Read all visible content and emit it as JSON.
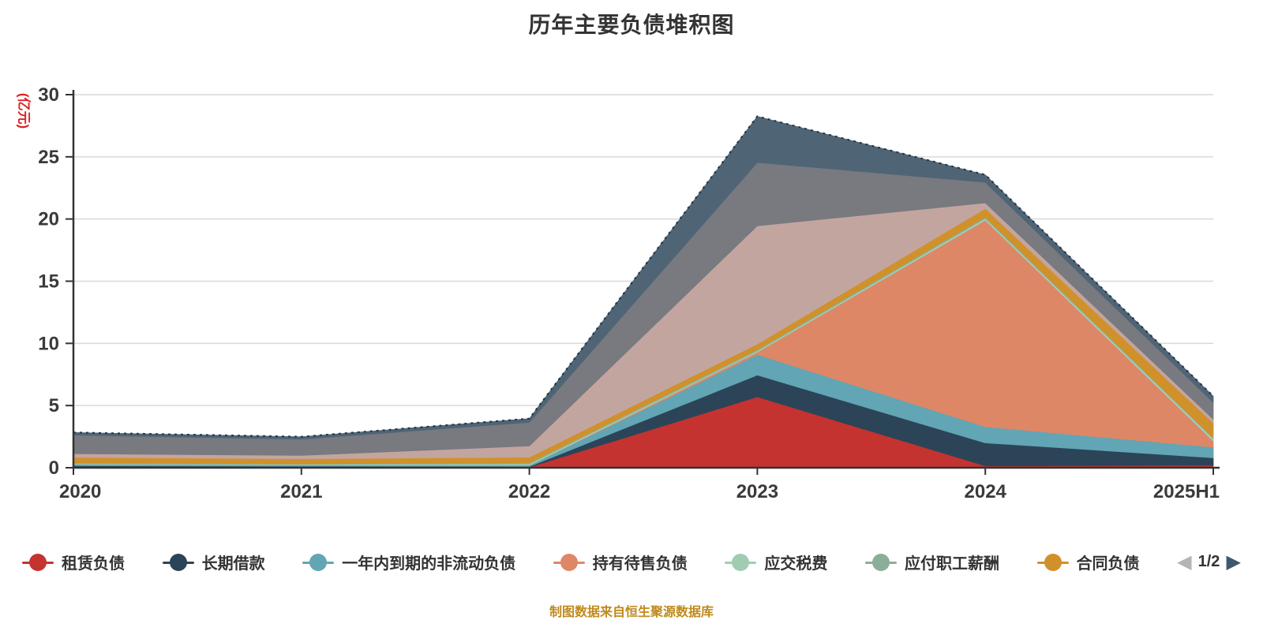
{
  "title": "历年主要负债堆积图",
  "footer": "制图数据来自恒生聚源数据库",
  "y_axis": {
    "name": "(亿元)",
    "ticks": [
      0,
      5,
      10,
      15,
      20,
      25,
      30
    ]
  },
  "x_axis": {
    "categories": [
      "2020",
      "2021",
      "2022",
      "2023",
      "2024",
      "2025H1"
    ]
  },
  "legend": {
    "pagination": {
      "label": "1/2"
    }
  },
  "colors": {
    "title_text": "#333333",
    "axis_line": "#333333",
    "tick_label": "#3a3a3a",
    "gridline": "#d9d9d9",
    "y_axis_name": "#e02222",
    "footer_text": "#bf8a1c",
    "pager_prev": "#b4b4b4",
    "pager_next": "#3f586d",
    "stack_top_border": "#26384a"
  },
  "chart_data": {
    "type": "area",
    "stacked": true,
    "title": "历年主要负债堆积图",
    "x": [
      "2020",
      "2021",
      "2022",
      "2023",
      "2024",
      "2025H1"
    ],
    "ylim": [
      0,
      30
    ],
    "ylabel": "(亿元)",
    "grid": true,
    "legend_position": "bottom",
    "series": [
      {
        "name": "租赁负债",
        "color": "#c43330",
        "in_legend": true,
        "values": [
          0.08,
          0.06,
          0.05,
          5.7,
          0.15,
          0.2
        ]
      },
      {
        "name": "长期借款",
        "color": "#2c4458",
        "in_legend": true,
        "values": [
          0.08,
          0.06,
          0.05,
          1.75,
          1.85,
          0.6
        ]
      },
      {
        "name": "一年内到期的非流动负债",
        "color": "#62a5b4",
        "in_legend": true,
        "values": [
          0.12,
          0.1,
          0.1,
          1.65,
          1.3,
          0.85
        ]
      },
      {
        "name": "持有待售负债",
        "color": "#dd8767",
        "in_legend": true,
        "values": [
          0.0,
          0.0,
          0.0,
          0.2,
          16.6,
          0.5
        ]
      },
      {
        "name": "应交税费",
        "color": "#a2ccb2",
        "in_legend": true,
        "values": [
          0.05,
          0.05,
          0.1,
          0.1,
          0.15,
          0.2
        ]
      },
      {
        "name": "应付职工薪酬",
        "color": "#8bae98",
        "in_legend": true,
        "values": [
          0.05,
          0.05,
          0.1,
          0.1,
          0.1,
          0.05
        ]
      },
      {
        "name": "合同负债",
        "color": "#d0912b",
        "in_legend": true,
        "values": [
          0.45,
          0.4,
          0.45,
          0.45,
          0.7,
          1.2
        ]
      },
      {
        "name": "",
        "color": "#c3a5a0",
        "in_legend": false,
        "values": [
          0.3,
          0.27,
          0.9,
          9.5,
          0.45,
          0.3
        ]
      },
      {
        "name": "",
        "color": "#797980",
        "in_legend": false,
        "values": [
          1.5,
          1.3,
          1.9,
          5.1,
          1.65,
          1.35
        ]
      },
      {
        "name": "",
        "color": "#4f6575",
        "in_legend": false,
        "values": [
          0.2,
          0.2,
          0.3,
          3.7,
          0.6,
          0.5
        ]
      }
    ]
  }
}
